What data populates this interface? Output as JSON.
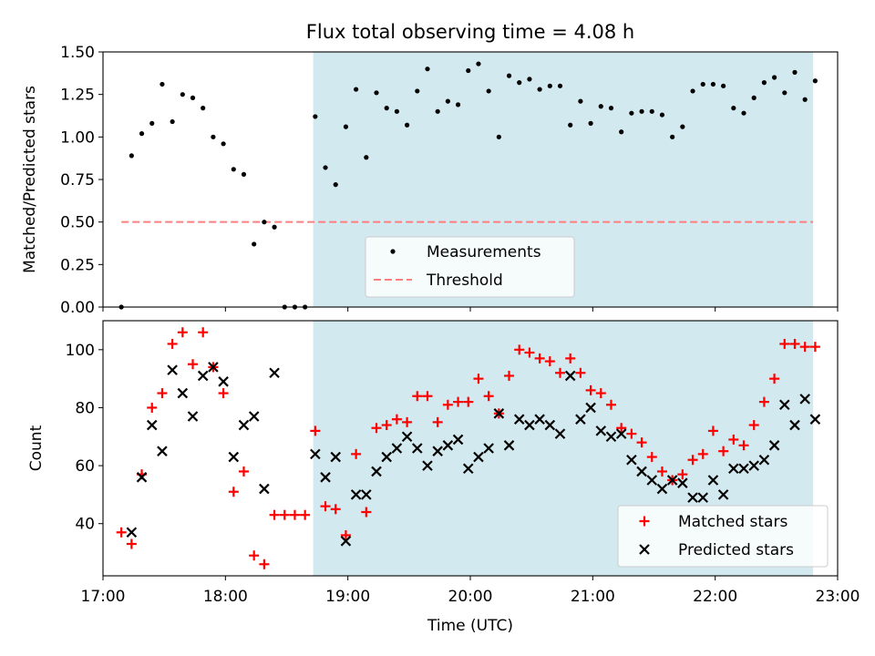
{
  "chart_data": [
    {
      "type": "scatter",
      "title": "Flux total observing time = 4.08 h",
      "xlabel": "",
      "ylabel": "Matched/Predicted stars",
      "xlim": [
        "17:00",
        "23:00"
      ],
      "ylim": [
        0,
        1.5
      ],
      "yticks": [
        "0.00",
        "0.25",
        "0.50",
        "0.75",
        "1.00",
        "1.25",
        "1.50"
      ],
      "shaded_span": {
        "from": "18:43",
        "to": "22:48",
        "color": "#d3e9f0"
      },
      "threshold": {
        "name": "Threshold",
        "value": 0.5,
        "from": "17:09",
        "to": "22:48",
        "color": "#ff7f7f"
      },
      "legend": {
        "placement": "lower-center",
        "entries": [
          "Measurements",
          "Threshold"
        ]
      },
      "series": [
        {
          "name": "Measurements",
          "marker": "dot",
          "color": "#000000",
          "points": [
            [
              "17:09",
              0.0
            ],
            [
              "17:14",
              0.89
            ],
            [
              "17:19",
              1.02
            ],
            [
              "17:24",
              1.08
            ],
            [
              "17:29",
              1.31
            ],
            [
              "17:34",
              1.09
            ],
            [
              "17:39",
              1.25
            ],
            [
              "17:44",
              1.23
            ],
            [
              "17:49",
              1.17
            ],
            [
              "17:54",
              1.0
            ],
            [
              "17:59",
              0.96
            ],
            [
              "18:04",
              0.81
            ],
            [
              "18:09",
              0.78
            ],
            [
              "18:14",
              0.37
            ],
            [
              "18:19",
              0.5
            ],
            [
              "18:24",
              0.47
            ],
            [
              "18:29",
              0.0
            ],
            [
              "18:34",
              0.0
            ],
            [
              "18:39",
              0.0
            ],
            [
              "18:44",
              1.12
            ],
            [
              "18:49",
              0.82
            ],
            [
              "18:54",
              0.72
            ],
            [
              "18:59",
              1.06
            ],
            [
              "19:04",
              1.28
            ],
            [
              "19:09",
              0.88
            ],
            [
              "19:14",
              1.26
            ],
            [
              "19:19",
              1.17
            ],
            [
              "19:24",
              1.15
            ],
            [
              "19:29",
              1.07
            ],
            [
              "19:34",
              1.27
            ],
            [
              "19:39",
              1.4
            ],
            [
              "19:44",
              1.15
            ],
            [
              "19:49",
              1.21
            ],
            [
              "19:54",
              1.19
            ],
            [
              "19:59",
              1.39
            ],
            [
              "20:04",
              1.43
            ],
            [
              "20:09",
              1.27
            ],
            [
              "20:14",
              1.0
            ],
            [
              "20:19",
              1.36
            ],
            [
              "20:24",
              1.32
            ],
            [
              "20:29",
              1.34
            ],
            [
              "20:34",
              1.28
            ],
            [
              "20:39",
              1.3
            ],
            [
              "20:44",
              1.3
            ],
            [
              "20:49",
              1.07
            ],
            [
              "20:54",
              1.21
            ],
            [
              "20:59",
              1.08
            ],
            [
              "21:04",
              1.18
            ],
            [
              "21:09",
              1.17
            ],
            [
              "21:14",
              1.03
            ],
            [
              "21:19",
              1.14
            ],
            [
              "21:24",
              1.15
            ],
            [
              "21:29",
              1.15
            ],
            [
              "21:34",
              1.13
            ],
            [
              "21:39",
              1.0
            ],
            [
              "21:44",
              1.06
            ],
            [
              "21:49",
              1.27
            ],
            [
              "21:54",
              1.31
            ],
            [
              "21:59",
              1.31
            ],
            [
              "22:04",
              1.3
            ],
            [
              "22:09",
              1.17
            ],
            [
              "22:14",
              1.14
            ],
            [
              "22:19",
              1.23
            ],
            [
              "22:24",
              1.32
            ],
            [
              "22:29",
              1.35
            ],
            [
              "22:34",
              1.26
            ],
            [
              "22:39",
              1.38
            ],
            [
              "22:44",
              1.22
            ],
            [
              "22:49",
              1.33
            ]
          ]
        }
      ]
    },
    {
      "type": "scatter",
      "title": "",
      "xlabel": "Time (UTC)",
      "ylabel": "Count",
      "xlim": [
        "17:00",
        "23:00"
      ],
      "xticks": [
        "17:00",
        "18:00",
        "19:00",
        "20:00",
        "21:00",
        "22:00",
        "23:00"
      ],
      "ylim": [
        22,
        110
      ],
      "yticks": [
        "40",
        "60",
        "80",
        "100"
      ],
      "shaded_span": {
        "from": "18:43",
        "to": "22:48",
        "color": "#d3e9f0"
      },
      "legend": {
        "placement": "lower-right",
        "entries": [
          "Matched stars",
          "Predicted stars"
        ]
      },
      "series": [
        {
          "name": "Matched stars",
          "marker": "plus",
          "color": "#ff0000",
          "points": [
            [
              "17:09",
              37
            ],
            [
              "17:14",
              33
            ],
            [
              "17:19",
              57
            ],
            [
              "17:24",
              80
            ],
            [
              "17:29",
              85
            ],
            [
              "17:34",
              102
            ],
            [
              "17:39",
              106
            ],
            [
              "17:44",
              95
            ],
            [
              "17:49",
              106
            ],
            [
              "17:54",
              94
            ],
            [
              "17:59",
              85
            ],
            [
              "18:04",
              51
            ],
            [
              "18:09",
              58
            ],
            [
              "18:14",
              29
            ],
            [
              "18:19",
              26
            ],
            [
              "18:24",
              43
            ],
            [
              "18:29",
              43
            ],
            [
              "18:34",
              43
            ],
            [
              "18:39",
              43
            ],
            [
              "18:44",
              72
            ],
            [
              "18:49",
              46
            ],
            [
              "18:54",
              45
            ],
            [
              "18:59",
              36
            ],
            [
              "19:04",
              64
            ],
            [
              "19:09",
              44
            ],
            [
              "19:14",
              73
            ],
            [
              "19:19",
              74
            ],
            [
              "19:24",
              76
            ],
            [
              "19:29",
              75
            ],
            [
              "19:34",
              84
            ],
            [
              "19:39",
              84
            ],
            [
              "19:44",
              75
            ],
            [
              "19:49",
              81
            ],
            [
              "19:54",
              82
            ],
            [
              "19:59",
              82
            ],
            [
              "20:04",
              90
            ],
            [
              "20:09",
              84
            ],
            [
              "20:14",
              78
            ],
            [
              "20:19",
              91
            ],
            [
              "20:24",
              100
            ],
            [
              "20:29",
              99
            ],
            [
              "20:34",
              97
            ],
            [
              "20:39",
              96
            ],
            [
              "20:44",
              92
            ],
            [
              "20:49",
              97
            ],
            [
              "20:54",
              92
            ],
            [
              "20:59",
              86
            ],
            [
              "21:04",
              85
            ],
            [
              "21:09",
              81
            ],
            [
              "21:14",
              73
            ],
            [
              "21:19",
              71
            ],
            [
              "21:24",
              68
            ],
            [
              "21:29",
              63
            ],
            [
              "21:34",
              58
            ],
            [
              "21:39",
              55
            ],
            [
              "21:44",
              57
            ],
            [
              "21:49",
              62
            ],
            [
              "21:54",
              64
            ],
            [
              "21:59",
              72
            ],
            [
              "22:04",
              65
            ],
            [
              "22:09",
              69
            ],
            [
              "22:14",
              67
            ],
            [
              "22:19",
              74
            ],
            [
              "22:24",
              82
            ],
            [
              "22:29",
              90
            ],
            [
              "22:34",
              102
            ],
            [
              "22:39",
              102
            ],
            [
              "22:44",
              101
            ],
            [
              "22:49",
              101
            ]
          ]
        },
        {
          "name": "Predicted stars",
          "marker": "x",
          "color": "#000000",
          "points": [
            [
              "17:14",
              37
            ],
            [
              "17:19",
              56
            ],
            [
              "17:24",
              74
            ],
            [
              "17:29",
              65
            ],
            [
              "17:34",
              93
            ],
            [
              "17:39",
              85
            ],
            [
              "17:44",
              77
            ],
            [
              "17:49",
              91
            ],
            [
              "17:54",
              94
            ],
            [
              "17:59",
              89
            ],
            [
              "18:04",
              63
            ],
            [
              "18:09",
              74
            ],
            [
              "18:14",
              77
            ],
            [
              "18:19",
              52
            ],
            [
              "18:24",
              92
            ],
            [
              "18:44",
              64
            ],
            [
              "18:49",
              56
            ],
            [
              "18:54",
              63
            ],
            [
              "18:59",
              34
            ],
            [
              "19:04",
              50
            ],
            [
              "19:09",
              50
            ],
            [
              "19:14",
              58
            ],
            [
              "19:19",
              63
            ],
            [
              "19:24",
              66
            ],
            [
              "19:29",
              70
            ],
            [
              "19:34",
              66
            ],
            [
              "19:39",
              60
            ],
            [
              "19:44",
              65
            ],
            [
              "19:49",
              67
            ],
            [
              "19:54",
              69
            ],
            [
              "19:59",
              59
            ],
            [
              "20:04",
              63
            ],
            [
              "20:09",
              66
            ],
            [
              "20:14",
              78
            ],
            [
              "20:19",
              67
            ],
            [
              "20:24",
              76
            ],
            [
              "20:29",
              74
            ],
            [
              "20:34",
              76
            ],
            [
              "20:39",
              74
            ],
            [
              "20:44",
              71
            ],
            [
              "20:49",
              91
            ],
            [
              "20:54",
              76
            ],
            [
              "20:59",
              80
            ],
            [
              "21:04",
              72
            ],
            [
              "21:09",
              70
            ],
            [
              "21:14",
              71
            ],
            [
              "21:19",
              62
            ],
            [
              "21:24",
              58
            ],
            [
              "21:29",
              55
            ],
            [
              "21:34",
              52
            ],
            [
              "21:39",
              55
            ],
            [
              "21:44",
              54
            ],
            [
              "21:49",
              49
            ],
            [
              "21:54",
              49
            ],
            [
              "21:59",
              55
            ],
            [
              "22:04",
              50
            ],
            [
              "22:09",
              59
            ],
            [
              "22:14",
              59
            ],
            [
              "22:19",
              60
            ],
            [
              "22:24",
              62
            ],
            [
              "22:29",
              67
            ],
            [
              "22:34",
              81
            ],
            [
              "22:39",
              74
            ],
            [
              "22:44",
              83
            ],
            [
              "22:49",
              76
            ]
          ]
        }
      ]
    }
  ]
}
